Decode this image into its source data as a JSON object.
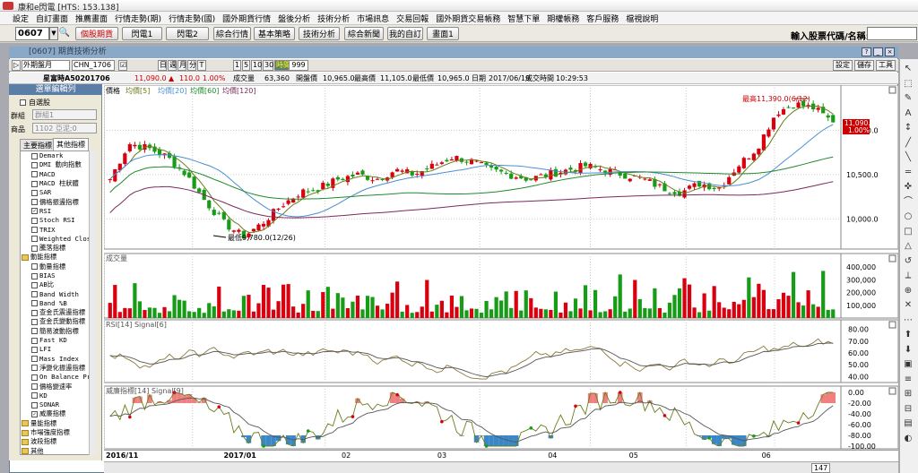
{
  "app": {
    "title": "康和e閃電 [HTS: 153.138]"
  },
  "menu": [
    "設定",
    "自訂畫面",
    "推薦畫面",
    "行情走勢(期)",
    "行情走勢(國)",
    "國外期貨行情",
    "盤後分析",
    "技術分析",
    "市場訊息",
    "交易回報",
    "國外期貨交易帳務",
    "智慧下單",
    "期權帳務",
    "客戶服務",
    "檔視說明"
  ],
  "toolbar": {
    "code": "0607",
    "buttons": [
      "個股期貨",
      "閃電1",
      "閃電2",
      "綜合行情",
      "基本策略",
      "技術分析",
      "綜合新聞",
      "我的自訂",
      "畫面1"
    ],
    "input_label": "輸入股票代碼/名稱:"
  },
  "window": {
    "title": "[0607] 期貨技術分析"
  },
  "controls": {
    "period": "外期盤月",
    "contract": "CHN_1706",
    "freq": [
      "日",
      "週",
      "月",
      "分",
      "T"
    ],
    "mins": [
      "1",
      "5",
      "10",
      "30"
    ],
    "tick_label": "時間",
    "count": "999",
    "right_buttons": [
      "設定",
      "儲存",
      "工具"
    ]
  },
  "info": {
    "name": "星富時A50201706",
    "price": "11,090.0",
    "change": "110.0",
    "pct": "1.00%",
    "vol_lbl": "成交量",
    "vol": "63,360",
    "open_lbl": "開盤價",
    "open": "10,965.0",
    "high_lbl": "最高價",
    "high": "11,105.0",
    "low_lbl": "最低價",
    "low": "10,965.0",
    "date_lbl": "日期",
    "date": "2017/06/19",
    "time_lbl": "成交時間",
    "time": "10:29:53"
  },
  "left": {
    "header": "選單編輯列",
    "self_select": "自選股",
    "group_lbl": "群組",
    "group_val": "群組1",
    "item_lbl": "商品",
    "item_val": "1102 亞泥;0",
    "tabs": [
      "主要指標",
      "其他指標"
    ]
  },
  "tree": [
    {
      "t": "c",
      "label": "Demark",
      "checked": false
    },
    {
      "t": "c",
      "label": "DMI 動向指數",
      "checked": false
    },
    {
      "t": "c",
      "label": "MACD",
      "checked": false
    },
    {
      "t": "c",
      "label": "MACD 柱狀體",
      "checked": false
    },
    {
      "t": "c",
      "label": "SAR",
      "checked": false
    },
    {
      "t": "c",
      "label": "價格振盪指標",
      "checked": false
    },
    {
      "t": "c",
      "label": "RSI",
      "checked": true
    },
    {
      "t": "c",
      "label": "Stoch RSI",
      "checked": false
    },
    {
      "t": "c",
      "label": "TRIX",
      "checked": false
    },
    {
      "t": "c",
      "label": "Weighted Clos",
      "checked": false
    },
    {
      "t": "c",
      "label": "騰落指標",
      "checked": false
    },
    {
      "t": "f",
      "label": "動能指標"
    },
    {
      "t": "c",
      "label": "動量指標",
      "checked": false
    },
    {
      "t": "c",
      "label": "BIAS",
      "checked": false
    },
    {
      "t": "c",
      "label": "AB比",
      "checked": false
    },
    {
      "t": "c",
      "label": "Band Width",
      "checked": false
    },
    {
      "t": "c",
      "label": "Band %B",
      "checked": false
    },
    {
      "t": "c",
      "label": "查金氏震盪指標",
      "checked": false
    },
    {
      "t": "c",
      "label": "查金氏變動指標",
      "checked": false
    },
    {
      "t": "c",
      "label": "簡易波動指標",
      "checked": false
    },
    {
      "t": "c",
      "label": "Fast KD",
      "checked": false
    },
    {
      "t": "c",
      "label": "LFI",
      "checked": false
    },
    {
      "t": "c",
      "label": "Mass Index",
      "checked": false
    },
    {
      "t": "c",
      "label": "淨變化振盪指標",
      "checked": false
    },
    {
      "t": "c",
      "label": "On Balance Pr",
      "checked": false
    },
    {
      "t": "c",
      "label": "價格變速率",
      "checked": false
    },
    {
      "t": "c",
      "label": "KD",
      "checked": false
    },
    {
      "t": "c",
      "label": "SONAR",
      "checked": false
    },
    {
      "t": "c",
      "label": "威廉指標",
      "checked": true
    },
    {
      "t": "f",
      "label": "量能指標"
    },
    {
      "t": "f",
      "label": "市場強度指標"
    },
    {
      "t": "f",
      "label": "波段指標"
    },
    {
      "t": "f",
      "label": "其他"
    }
  ],
  "charts": {
    "price_label": "價格",
    "ma": [
      "均價[5]",
      "均價[20]",
      "均價[60]",
      "均價[120]"
    ],
    "price_ticks": [
      "10,000.0",
      "10,500.0",
      "11,000.0"
    ],
    "last_price_tag": "11,090.0",
    "last_pct_tag": "1.00%",
    "hi_annot": "最高11,390.0(6/12)",
    "lo_annot": "最低9,780.0(12/26)",
    "vol_label": "成交量",
    "vol_ticks": [
      "100,000",
      "200,000",
      "300,000",
      "400,000"
    ],
    "rsi_label": "RSI[14] Signal[6]",
    "rsi_ticks": [
      "40.00",
      "50.00",
      "60.00",
      "70.00",
      "80.00"
    ],
    "wr_label": "威廉指標[14] Signal[9]",
    "wr_ticks": [
      "0.00",
      "-20.00",
      "-40.00",
      "-60.00",
      "-80.00",
      "-100.00"
    ],
    "dates": [
      "2016/11",
      "2017/01",
      "02",
      "03",
      "04",
      "05",
      "06"
    ],
    "zoom": "147"
  },
  "colors": {
    "up": "#d8000f",
    "down": "#169c16",
    "ma5": "#6b7d1a",
    "ma20": "#4a8fd0",
    "ma60": "#1f8a2c",
    "ma120": "#7a2a5a"
  },
  "chart_data": [
    {
      "type": "candlestick",
      "title": "星富時A50201706",
      "ylabel": "價格",
      "ylim": [
        9700,
        11450
      ],
      "series": [
        {
          "name": "均價[5]"
        },
        {
          "name": "均價[20]"
        },
        {
          "name": "均價[60]"
        },
        {
          "name": "均價[120]"
        }
      ],
      "annotations": [
        "最高11,390.0(6/12)",
        "最低9,780.0(12/26)"
      ],
      "close_anchor": [
        10450,
        10850,
        10800,
        10700,
        10500,
        10200,
        9950,
        9800,
        9950,
        10150,
        10300,
        10350,
        10450,
        10500,
        10450,
        10550,
        10500,
        10600,
        10700,
        10650,
        10550,
        10500,
        10450,
        10500,
        10550,
        10600,
        10550,
        10500,
        10450,
        10350,
        10300,
        10400,
        10350,
        10600,
        10800,
        11200,
        11300,
        11250,
        11090
      ]
    },
    {
      "type": "bar",
      "ylabel": "成交量",
      "ylim": [
        0,
        450000
      ]
    },
    {
      "type": "line",
      "ylabel": "RSI[14] Signal[6]",
      "ylim": [
        35,
        85
      ]
    },
    {
      "type": "line",
      "ylabel": "威廉指標[14] Signal[9]",
      "ylim": [
        -105,
        5
      ]
    }
  ]
}
